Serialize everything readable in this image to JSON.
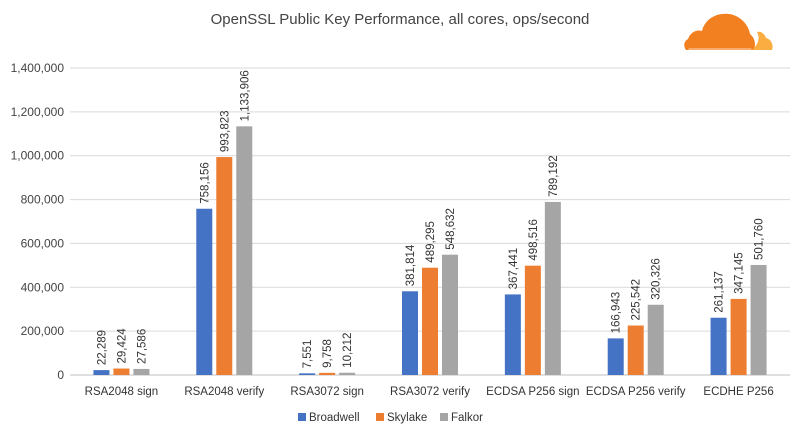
{
  "chart_data": {
    "type": "bar",
    "title": "OpenSSL Public Key Performance, all cores, ops/second",
    "xlabel": "",
    "ylabel": "",
    "ylim": [
      0,
      1400000
    ],
    "y_ticks": [
      "0",
      "200,000",
      "400,000",
      "600,000",
      "800,000",
      "1,000,000",
      "1,200,000",
      "1,400,000"
    ],
    "y_tick_values": [
      0,
      200000,
      400000,
      600000,
      800000,
      1000000,
      1200000,
      1400000
    ],
    "grid": true,
    "legend_position": "bottom",
    "categories": [
      "RSA2048 sign",
      "RSA2048 verify",
      "RSA3072 sign",
      "RSA3072 verify",
      "ECDSA P256 sign",
      "ECDSA P256 verify",
      "ECDHE P256"
    ],
    "series": [
      {
        "name": "Broadwell",
        "color": "#4472C4",
        "values": [
          22289,
          758156,
          7551,
          381814,
          367441,
          166943,
          261137
        ],
        "labels": [
          "22,289",
          "758,156",
          "7,551",
          "381,814",
          "367,441",
          "166,943",
          "261,137"
        ]
      },
      {
        "name": "Skylake",
        "color": "#ED7D31",
        "values": [
          29424,
          993823,
          9758,
          489295,
          498516,
          225542,
          347145
        ],
        "labels": [
          "29,424",
          "993,823",
          "9,758",
          "489,295",
          "498,516",
          "225,542",
          "347,145"
        ]
      },
      {
        "name": "Falkor",
        "color": "#A5A5A5",
        "values": [
          27586,
          1133906,
          10212,
          548632,
          789192,
          320326,
          501760
        ],
        "labels": [
          "27,586",
          "1,133,906",
          "10,212",
          "548,632",
          "789,192",
          "320,326",
          "501,760"
        ]
      }
    ]
  },
  "logo": {
    "name": "cloud-logo",
    "color_main": "#F38020",
    "color_light": "#FBAD41"
  },
  "colors": {
    "grid": "#D9D9D9",
    "axis": "#BFBFBF"
  }
}
